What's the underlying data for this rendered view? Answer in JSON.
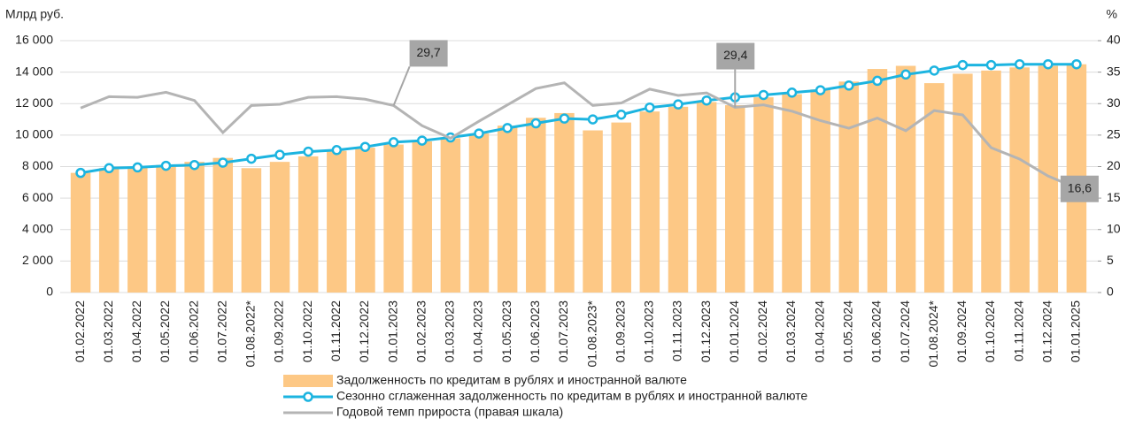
{
  "chart_data": {
    "type": "bar",
    "y_label": "Млрд руб.",
    "y2_label": "%",
    "categories": [
      "01.02.2022",
      "01.03.2022",
      "01.04.2022",
      "01.05.2022",
      "01.06.2022",
      "01.07.2022",
      "01.08.2022*",
      "01.09.2022",
      "01.10.2022",
      "01.11.2022",
      "01.12.2022",
      "01.01.2023",
      "01.02.2023",
      "01.03.2023",
      "01.04.2023",
      "01.05.2023",
      "01.06.2023",
      "01.07.2023",
      "01.08.2023*",
      "01.09.2023",
      "01.10.2023",
      "01.11.2023",
      "01.12.2023",
      "01.01.2024",
      "01.02.2024",
      "01.03.2024",
      "01.04.2024",
      "01.05.2024",
      "01.06.2024",
      "01.07.2024",
      "01.08.2024*",
      "01.09.2024",
      "01.10.2024",
      "01.11.2024",
      "01.12.2024",
      "01.01.2025"
    ],
    "ylim": [
      0,
      16000
    ],
    "yticks": [
      0,
      {
        "value": 2000,
        "label": "2 000"
      },
      {
        "value": 4000,
        "label": "4 000"
      },
      {
        "value": 6000,
        "label": "6 000"
      },
      {
        "value": 8000,
        "label": "8 000"
      },
      {
        "value": 10000,
        "label": "10 000"
      },
      {
        "value": 12000,
        "label": "12 000"
      },
      {
        "value": 14000,
        "label": "14 000"
      },
      {
        "value": 16000,
        "label": "16 000"
      }
    ],
    "y2lim": [
      0,
      40
    ],
    "y2ticks": [
      0,
      5,
      10,
      15,
      20,
      25,
      30,
      35,
      40
    ],
    "grid": true,
    "series": [
      {
        "name": "Задолженность по кредитам в рублях и иностранной валюте",
        "type": "bar",
        "color": "#fdc885",
        "values": [
          7600,
          7900,
          7950,
          8100,
          8300,
          8550,
          7900,
          8300,
          8650,
          9000,
          9200,
          9400,
          9600,
          9800,
          10100,
          10600,
          11100,
          11400,
          10300,
          10800,
          11500,
          11800,
          12100,
          11900,
          12400,
          12600,
          12900,
          13400,
          14200,
          14400,
          13300,
          13900,
          14100,
          14300,
          14400,
          14500
        ]
      },
      {
        "name": "Сезонно сглаженная задолженность по кредитам в рублях и иностранной валюте",
        "type": "line",
        "markers": true,
        "color": "#1cb4e0",
        "values": [
          7600,
          7900,
          7950,
          8050,
          8100,
          8250,
          8500,
          8750,
          8950,
          9050,
          9250,
          9550,
          9650,
          9850,
          10100,
          10450,
          10750,
          11050,
          11000,
          11300,
          11750,
          11950,
          12200,
          12400,
          12550,
          12700,
          12850,
          13150,
          13450,
          13850,
          14100,
          14450,
          14450,
          14500,
          14500,
          14500
        ]
      },
      {
        "name": "Годовой темп прироста (правая шкала)",
        "type": "line",
        "markers": false,
        "axis": "y2",
        "color": "#b4b4b4",
        "values": [
          29.3,
          31.1,
          31.0,
          31.8,
          30.5,
          25.4,
          29.7,
          29.9,
          31.0,
          31.1,
          30.7,
          29.7,
          26.5,
          24.5,
          27.2,
          29.8,
          32.4,
          33.3,
          29.7,
          30.1,
          32.3,
          31.3,
          31.7,
          29.4,
          29.8,
          28.8,
          27.3,
          26.1,
          27.7,
          25.7,
          28.9,
          28.2,
          23.0,
          21.2,
          18.5,
          16.6
        ],
        "value_labels": [
          null,
          null,
          null,
          null,
          null,
          null,
          null,
          null,
          null,
          null,
          null,
          "29,7",
          null,
          null,
          null,
          null,
          null,
          null,
          null,
          null,
          null,
          null,
          null,
          "29,4",
          null,
          null,
          null,
          null,
          null,
          null,
          null,
          null,
          null,
          null,
          null,
          "16,6"
        ]
      }
    ]
  }
}
